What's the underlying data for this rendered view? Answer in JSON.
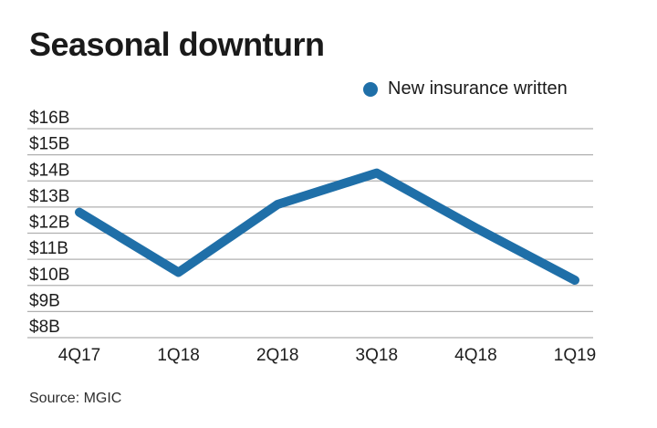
{
  "header": {
    "title": "Seasonal downturn"
  },
  "legend": {
    "label": "New insurance written",
    "marker_color": "#1f6fa8"
  },
  "source": {
    "text": "Source: MGIC"
  },
  "colors": {
    "line": "#1f6fa8",
    "grid": "#b0b0b0",
    "text": "#1a1a1a"
  },
  "chart_data": {
    "type": "line",
    "title": "Seasonal downturn",
    "categories": [
      "4Q17",
      "1Q18",
      "2Q18",
      "3Q18",
      "4Q18",
      "1Q19"
    ],
    "series": [
      {
        "name": "New insurance written",
        "values": [
          12.8,
          10.5,
          13.1,
          14.3,
          12.2,
          10.2
        ],
        "color": "#1f6fa8"
      }
    ],
    "xlabel": "",
    "ylabel": "",
    "ylim": [
      8,
      16
    ],
    "ytick_step": 1,
    "ytick_labels": [
      "$16B",
      "$15B",
      "$14B",
      "$13B",
      "$12B",
      "$11B",
      "$10B",
      "$9B",
      "$8B"
    ],
    "grid": "horizontal-only",
    "legend_position": "top-right",
    "source": "Source: MGIC"
  }
}
